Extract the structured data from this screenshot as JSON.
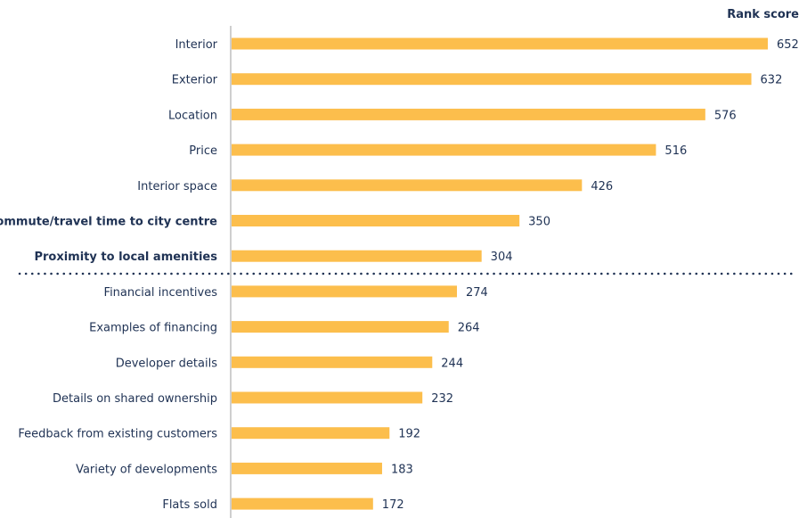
{
  "chart_data": {
    "type": "bar",
    "orientation": "horizontal",
    "title": "",
    "value_header": "Rank score",
    "categories": [
      "Interior",
      "Exterior",
      "Location",
      "Price",
      "Interior space",
      "Commute/travel time to city centre",
      "Proximity to local amenities",
      "Financial incentives",
      "Examples of financing",
      "Developer details",
      "Details on shared ownership",
      "Feedback from existing customers",
      "Variety of developments",
      "Flats sold"
    ],
    "values": [
      652,
      632,
      576,
      516,
      426,
      350,
      304,
      274,
      264,
      244,
      232,
      192,
      183,
      172
    ],
    "value_labels": [
      "652",
      "632",
      "576",
      "516",
      "426",
      "350",
      "304",
      "274",
      "264",
      "244",
      "232",
      "192",
      "183",
      "172"
    ],
    "bold_categories": [
      "Commute/travel time to city centre",
      "Proximity to local amenities"
    ],
    "separator_after": "Proximity to local amenities",
    "xlim": [
      0,
      652
    ],
    "grid": false,
    "legend": "none",
    "colors": {
      "bar": "#FCBE4C",
      "text": "#1F3254",
      "axis": "#BFBFBF",
      "separator": "#1F3254"
    }
  }
}
